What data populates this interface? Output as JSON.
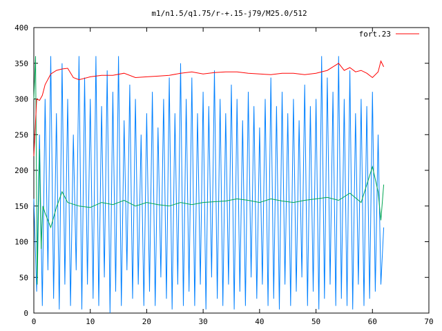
{
  "chart_data": {
    "type": "line",
    "title": "m1/n1.5/q1.75/r-+.15-j79/M25.0/512",
    "xlabel": "",
    "ylabel": "",
    "xlim": [
      0,
      70
    ],
    "ylim": [
      0,
      400
    ],
    "xticks": [
      0,
      10,
      20,
      30,
      40,
      50,
      60,
      70
    ],
    "yticks": [
      0,
      50,
      100,
      150,
      200,
      250,
      300,
      350,
      400
    ],
    "grid": false,
    "legend_position": "top-right",
    "series": [
      {
        "name": "fort.23",
        "color": "#ff0000",
        "x": [
          0,
          0.5,
          1,
          1.5,
          2,
          3,
          4,
          5,
          6,
          7,
          8,
          10,
          12,
          14,
          16,
          18,
          20,
          22,
          24,
          26,
          28,
          30,
          32,
          34,
          36,
          38,
          40,
          42,
          44,
          46,
          48,
          50,
          52,
          53,
          54,
          55,
          56,
          57,
          58,
          59,
          60,
          61,
          61.5,
          62
        ],
        "y": [
          220,
          300,
          298,
          305,
          320,
          335,
          340,
          342,
          343,
          330,
          327,
          331,
          333,
          333,
          336,
          330,
          331,
          332,
          333,
          336,
          338,
          335,
          337,
          338,
          338,
          336,
          335,
          334,
          336,
          336,
          334,
          336,
          340,
          345,
          350,
          340,
          344,
          338,
          340,
          336,
          330,
          338,
          353,
          345
        ]
      },
      {
        "name": "",
        "color": "#00a651",
        "x": [
          0,
          0.3,
          0.6,
          1,
          1.3,
          1.6,
          2,
          3,
          4,
          5,
          6,
          8,
          10,
          12,
          14,
          16,
          18,
          20,
          22,
          24,
          26,
          28,
          30,
          32,
          34,
          36,
          38,
          40,
          42,
          44,
          46,
          48,
          50,
          52,
          54,
          56,
          58,
          60,
          61,
          61.5,
          62
        ],
        "y": [
          300,
          360,
          40,
          230,
          90,
          150,
          140,
          120,
          148,
          170,
          155,
          150,
          148,
          155,
          152,
          158,
          150,
          155,
          152,
          150,
          155,
          152,
          155,
          156,
          157,
          160,
          158,
          155,
          160,
          157,
          155,
          158,
          160,
          162,
          158,
          168,
          155,
          205,
          170,
          130,
          180
        ]
      },
      {
        "name": "",
        "color": "#0080ff",
        "x": [
          0,
          0.5,
          1,
          1.5,
          2,
          2.5,
          3,
          3.5,
          4,
          4.5,
          5,
          5.5,
          6,
          6.5,
          7,
          7.5,
          8,
          8.5,
          9,
          9.5,
          10,
          10.5,
          11,
          11.5,
          12,
          12.5,
          13,
          13.5,
          14,
          14.5,
          15,
          15.5,
          16,
          16.5,
          17,
          17.5,
          18,
          18.5,
          19,
          19.5,
          20,
          20.5,
          21,
          21.5,
          22,
          22.5,
          23,
          23.5,
          24,
          24.5,
          25,
          25.5,
          26,
          26.5,
          27,
          27.5,
          28,
          28.5,
          29,
          29.5,
          30,
          30.5,
          31,
          31.5,
          32,
          32.5,
          33,
          33.5,
          34,
          34.5,
          35,
          35.5,
          36,
          36.5,
          37,
          37.5,
          38,
          38.5,
          39,
          39.5,
          40,
          40.5,
          41,
          41.5,
          42,
          42.5,
          43,
          43.5,
          44,
          44.5,
          45,
          45.5,
          46,
          46.5,
          47,
          47.5,
          48,
          48.5,
          49,
          49.5,
          50,
          50.5,
          51,
          51.5,
          52,
          52.5,
          53,
          53.5,
          54,
          54.5,
          55,
          55.5,
          56,
          56.5,
          57,
          57.5,
          58,
          58.5,
          59,
          59.5,
          60,
          60.5,
          61,
          61.5,
          62
        ],
        "y": [
          160,
          30,
          250,
          10,
          300,
          60,
          360,
          20,
          280,
          5,
          350,
          40,
          300,
          10,
          250,
          60,
          360,
          5,
          330,
          40,
          300,
          20,
          360,
          10,
          290,
          50,
          340,
          0,
          310,
          30,
          360,
          10,
          270,
          60,
          320,
          20,
          300,
          40,
          250,
          10,
          280,
          30,
          310,
          10,
          260,
          50,
          300,
          20,
          330,
          5,
          280,
          40,
          350,
          10,
          300,
          30,
          330,
          10,
          280,
          40,
          310,
          5,
          290,
          50,
          340,
          20,
          300,
          10,
          280,
          40,
          320,
          5,
          300,
          30,
          270,
          10,
          310,
          50,
          290,
          20,
          260,
          40,
          300,
          10,
          330,
          20,
          290,
          5,
          310,
          40,
          280,
          10,
          300,
          30,
          270,
          50,
          320,
          10,
          290,
          30,
          300,
          5,
          360,
          20,
          330,
          40,
          310,
          10,
          360,
          20,
          300,
          10,
          340,
          5,
          280,
          40,
          300,
          10,
          290,
          20,
          310,
          30,
          250,
          40,
          120
        ]
      }
    ]
  }
}
